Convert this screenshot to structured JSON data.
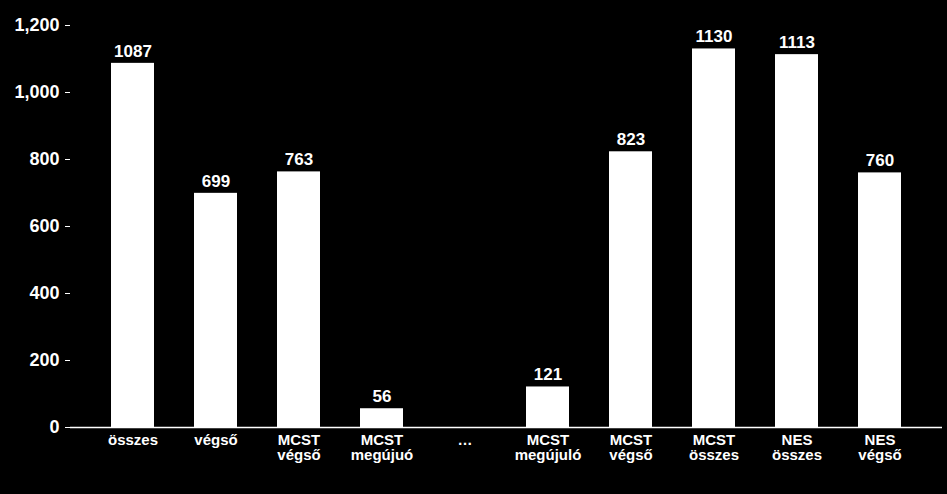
{
  "chart_data": {
    "type": "bar",
    "categories": [
      "összes",
      "végső",
      "MCST\nvégső",
      "MCST\nmegújuó",
      "…",
      "MCST\nmegújuló",
      "MCST\nvégső",
      "MCST\nösszes",
      "NES\nösszes",
      "NES\nvégső"
    ],
    "values": [
      1087,
      699,
      763,
      56,
      null,
      121,
      823,
      1130,
      1113,
      760
    ],
    "color": "#ffffff",
    "ylim": [
      0,
      1200
    ],
    "yticks": [
      0,
      200,
      400,
      600,
      800,
      1000,
      1200
    ],
    "grid": false,
    "data_labels": true
  }
}
